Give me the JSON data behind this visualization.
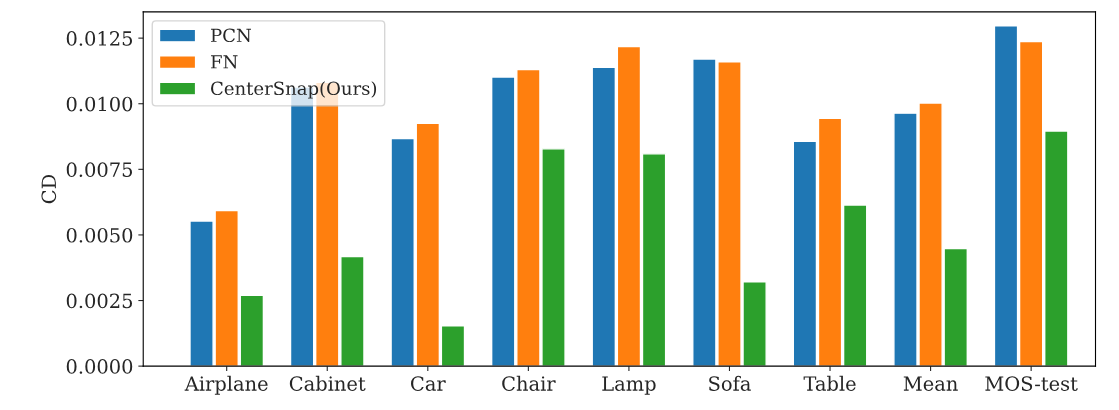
{
  "chart_data": {
    "type": "bar",
    "ylabel": "CD",
    "categories": [
      "Airplane",
      "Cabinet",
      "Car",
      "Chair",
      "Lamp",
      "Sofa",
      "Table",
      "Mean",
      "MOS-test"
    ],
    "series": [
      {
        "name": "PCN",
        "color": "#1f77b4",
        "values": [
          0.00553,
          0.01064,
          0.00867,
          0.01102,
          0.01139,
          0.0117,
          0.00857,
          0.00964,
          0.01297
        ]
      },
      {
        "name": "FN",
        "color": "#ff7f0e",
        "values": [
          0.00593,
          0.01082,
          0.00925,
          0.0113,
          0.01218,
          0.0116,
          0.00944,
          0.01003,
          0.01237
        ]
      },
      {
        "name": "CenterSnap(Ours)",
        "color": "#2ca02c",
        "values": [
          0.0027,
          0.00418,
          0.00154,
          0.00828,
          0.00809,
          0.00321,
          0.00614,
          0.00448,
          0.00896
        ]
      }
    ],
    "ylim": [
      0,
      0.0135
    ],
    "yticks": [
      {
        "value": 0,
        "label": "0.0000"
      },
      {
        "value": 0.0025,
        "label": "0.0025"
      },
      {
        "value": 0.005,
        "label": "0.0050"
      },
      {
        "value": 0.0075,
        "label": "0.0075"
      },
      {
        "value": 0.01,
        "label": "0.0100"
      },
      {
        "value": 0.0125,
        "label": "0.0125"
      }
    ],
    "grid": false,
    "legend": "top left"
  }
}
